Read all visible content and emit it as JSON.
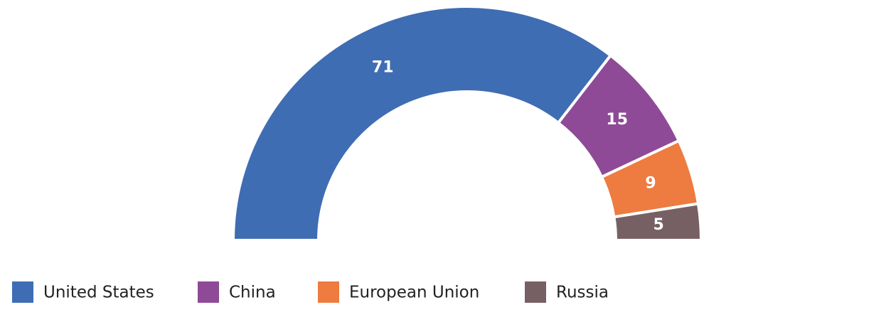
{
  "chart_data": {
    "type": "pie",
    "shape": "half-donut",
    "categories": [
      "United States",
      "China",
      "European Union",
      "Russia"
    ],
    "values": [
      71,
      15,
      9,
      5
    ],
    "colors": [
      "#3f6db3",
      "#8e4a97",
      "#ee7b40",
      "#776064"
    ]
  }
}
